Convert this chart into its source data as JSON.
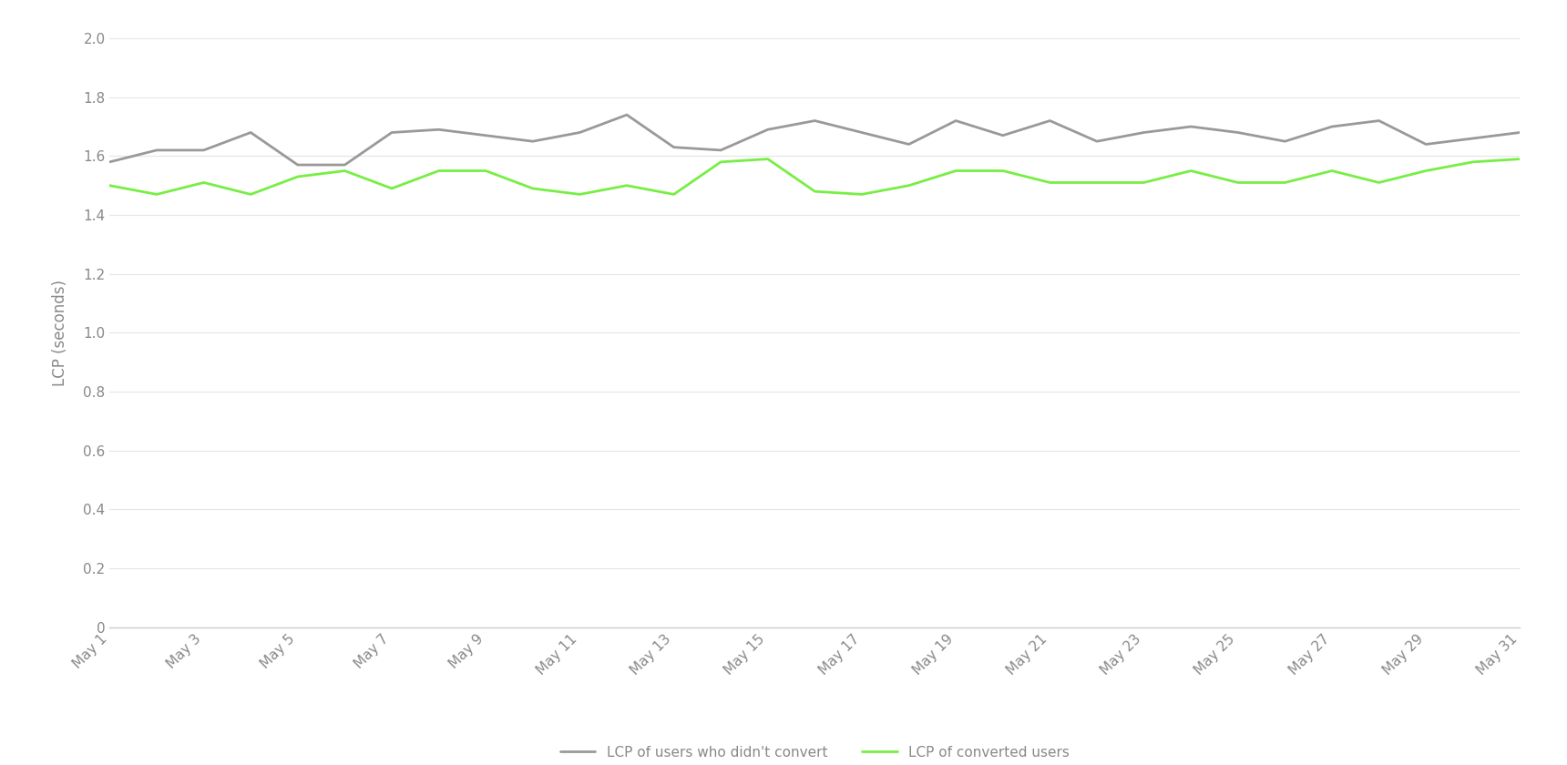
{
  "x_labels": [
    "May 1",
    "May 3",
    "May 5",
    "May 7",
    "May 9",
    "May 11",
    "May 13",
    "May 15",
    "May 17",
    "May 19",
    "May 21",
    "May 23",
    "May 25",
    "May 27",
    "May 29",
    "May 31"
  ],
  "no_convert": [
    1.58,
    1.62,
    1.62,
    1.68,
    1.57,
    1.57,
    1.68,
    1.69,
    1.67,
    1.65,
    1.68,
    1.74,
    1.63,
    1.62,
    1.69,
    1.72,
    1.68,
    1.64,
    1.72,
    1.67,
    1.72,
    1.65,
    1.68,
    1.7,
    1.68,
    1.65,
    1.7,
    1.72,
    1.64,
    1.66,
    1.68
  ],
  "convert": [
    1.5,
    1.47,
    1.51,
    1.47,
    1.53,
    1.55,
    1.49,
    1.55,
    1.55,
    1.49,
    1.47,
    1.5,
    1.47,
    1.58,
    1.59,
    1.48,
    1.47,
    1.5,
    1.55,
    1.55,
    1.51,
    1.51,
    1.51,
    1.55,
    1.51,
    1.51,
    1.55,
    1.51,
    1.55,
    1.58,
    1.59
  ],
  "gray_color": "#999999",
  "green_color": "#77ee44",
  "line_width": 2.0,
  "ylabel": "LCP (seconds)",
  "ylim": [
    0,
    2.0
  ],
  "yticks": [
    0,
    0.2,
    0.4,
    0.6,
    0.8,
    1.0,
    1.2,
    1.4,
    1.6,
    1.8,
    2.0
  ],
  "legend_no_convert": "LCP of users who didn't convert",
  "legend_convert": "LCP of converted users",
  "background_color": "#ffffff",
  "label_color": "#888888",
  "grid_color": "#e5e5e5",
  "bottom_spine_color": "#cccccc"
}
